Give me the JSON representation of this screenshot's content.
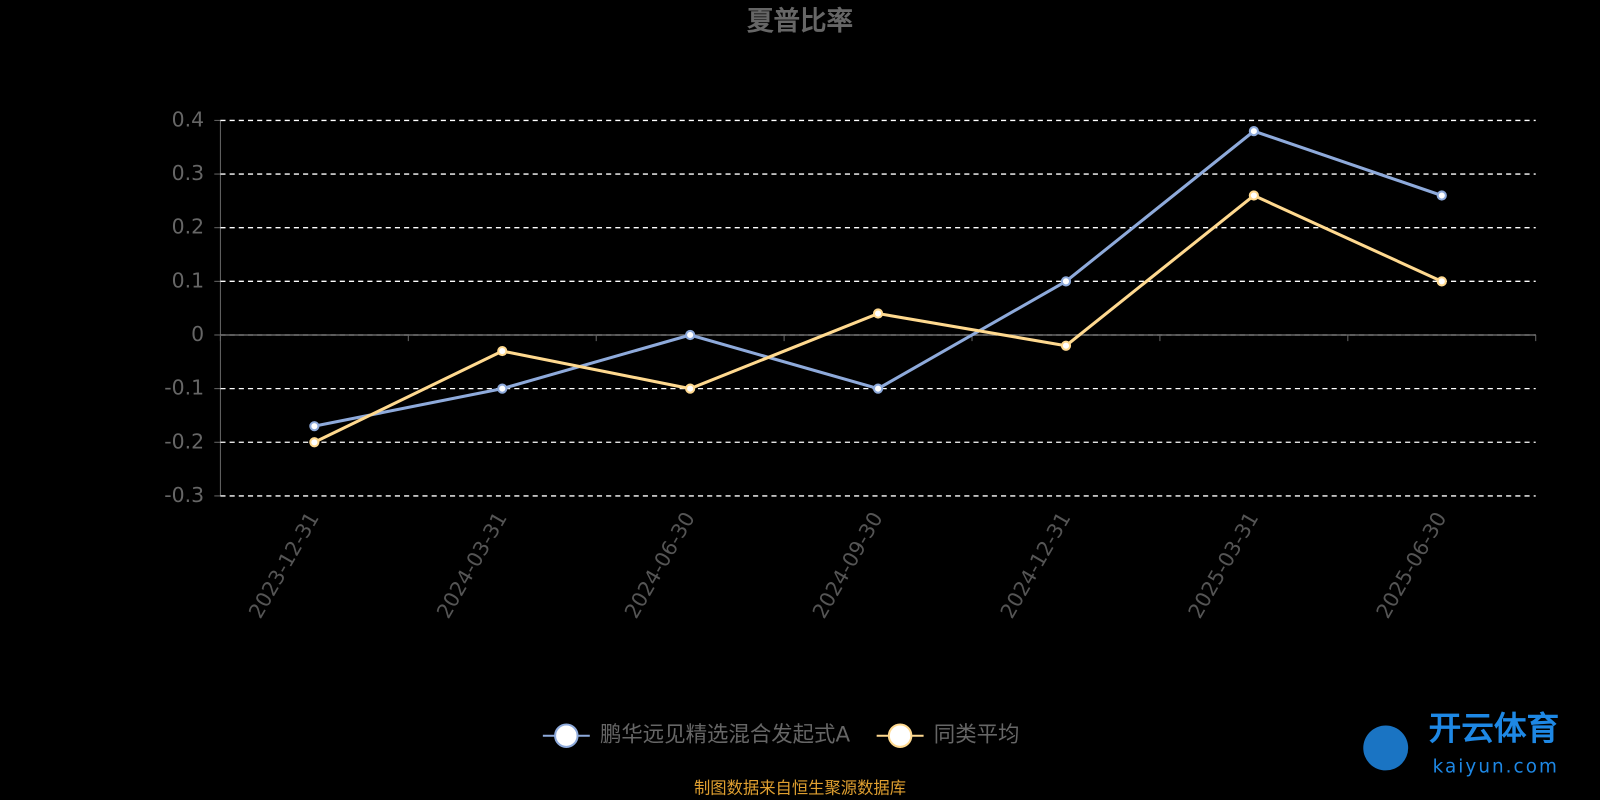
{
  "chart_data": {
    "type": "line",
    "title": "夏普比率",
    "categories": [
      "2023-12-31",
      "2024-03-31",
      "2024-06-30",
      "2024-09-30",
      "2024-12-31",
      "2025-03-31",
      "2025-06-30"
    ],
    "series": [
      {
        "name": "鹏华远见精选混合发起式A",
        "color": "#8eaadb",
        "values": [
          -0.17,
          -0.1,
          0.0,
          -0.1,
          0.1,
          0.38,
          0.26
        ]
      },
      {
        "name": "同类平均",
        "color": "#ffd98f",
        "values": [
          -0.2,
          -0.03,
          -0.1,
          0.04,
          -0.02,
          0.26,
          0.1
        ]
      }
    ],
    "ylim": [
      -0.3,
      0.4
    ],
    "yticks": [
      -0.3,
      -0.2,
      -0.1,
      0,
      0.1,
      0.2,
      0.3,
      0.4
    ],
    "grid": true,
    "legend": "bottom",
    "source": "制图数据来自恒生聚源数据库",
    "watermark": {
      "brand": "开云体育",
      "site": "kaiyun.com"
    }
  }
}
